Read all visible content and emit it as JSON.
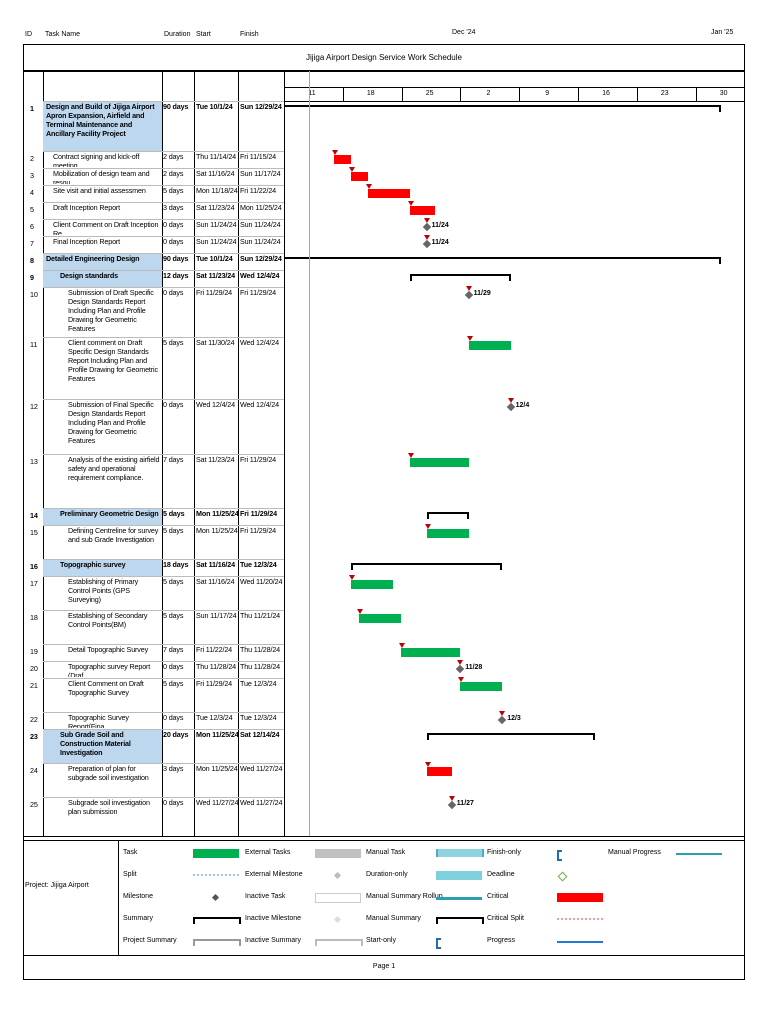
{
  "title": "Jijiga Airport Design Service Work Schedule",
  "headers": {
    "id": "ID",
    "name": "Task Name",
    "duration": "Duration",
    "start": "Start",
    "finish": "Finish"
  },
  "timescale": {
    "months": [
      "Dec '24",
      "Jan '25"
    ],
    "days": [
      "11",
      "18",
      "25",
      "2",
      "9",
      "16",
      "23",
      "30"
    ]
  },
  "tasks": [
    {
      "id": "1",
      "name": "Design and Build of Jijiga Airport Apron Expansion, Airfield and Terminal Maintenance and Ancillary Facility Project",
      "duration": "90 days",
      "start": "Tue 10/1/24",
      "finish": "Sun 12/29/24",
      "summary": true
    },
    {
      "id": "2",
      "name": "Contract signing and kick-off meeting",
      "duration": "2 days",
      "start": "Thu 11/14/24",
      "finish": "Fri 11/15/24"
    },
    {
      "id": "3",
      "name": "Mobilization of design team and resou",
      "duration": "2 days",
      "start": "Sat 11/16/24",
      "finish": "Sun 11/17/24"
    },
    {
      "id": "4",
      "name": "Site visit and initial assessmen",
      "duration": "5 days",
      "start": "Mon 11/18/24",
      "finish": "Fri 11/22/24"
    },
    {
      "id": "5",
      "name": "Draft Inception Report",
      "duration": "3 days",
      "start": "Sat 11/23/24",
      "finish": "Mon 11/25/24"
    },
    {
      "id": "6",
      "name": "Client Comment on Draft Inception Re",
      "duration": "0 days",
      "start": "Sun 11/24/24",
      "finish": "Sun 11/24/24",
      "milestone": "11/24"
    },
    {
      "id": "7",
      "name": "Final Inception Report",
      "duration": "0 days",
      "start": "Sun 11/24/24",
      "finish": "Sun 11/24/24",
      "milestone": "11/24"
    },
    {
      "id": "8",
      "name": "Detailed Engineering Design",
      "duration": "90 days",
      "start": "Tue 10/1/24",
      "finish": "Sun 12/29/24",
      "summary": true
    },
    {
      "id": "9",
      "name": "Design standards",
      "duration": "12 days",
      "start": "Sat 11/23/24",
      "finish": "Wed 12/4/24",
      "summary": true
    },
    {
      "id": "10",
      "name": "Submission of Draft Specific Design Standards Report Including Plan and Profile Drawing for Geometric Features",
      "duration": "0 days",
      "start": "Fri 11/29/24",
      "finish": "Fri 11/29/24",
      "milestone": "11/29"
    },
    {
      "id": "11",
      "name": "Client comment on Draft Specific Design Standards Report Including Plan and Profile Drawing for Geometric Features",
      "duration": "5 days",
      "start": "Sat 11/30/24",
      "finish": "Wed 12/4/24"
    },
    {
      "id": "12",
      "name": "Submission of Final Specific Design Standards Report Including Plan and Profile Drawing for Geometric Features",
      "duration": "0 days",
      "start": "Wed 12/4/24",
      "finish": "Wed 12/4/24",
      "milestone": "12/4"
    },
    {
      "id": "13",
      "name": "Analysis of the existing airfield safety and operational requirement compliance.",
      "duration": "7 days",
      "start": "Sat 11/23/24",
      "finish": "Fri 11/29/24"
    },
    {
      "id": "14",
      "name": "Preliminary Geometric Design",
      "duration": "5 days",
      "start": "Mon 11/25/24",
      "finish": "Fri 11/29/24",
      "summary": true
    },
    {
      "id": "15",
      "name": "Defining Centreline for survey and sub Grade Investigation",
      "duration": "5 days",
      "start": "Mon 11/25/24",
      "finish": "Fri 11/29/24"
    },
    {
      "id": "16",
      "name": "Topographic survey",
      "duration": "18 days",
      "start": "Sat 11/16/24",
      "finish": "Tue 12/3/24",
      "summary": true
    },
    {
      "id": "17",
      "name": "Establishing of Primary Control Points (GPS Surveying)",
      "duration": "5 days",
      "start": "Sat 11/16/24",
      "finish": "Wed 11/20/24"
    },
    {
      "id": "18",
      "name": "Establishing of Secondary Control Points(BM)",
      "duration": "5 days",
      "start": "Sun 11/17/24",
      "finish": "Thu 11/21/24"
    },
    {
      "id": "19",
      "name": "Detail Topographic Survey",
      "duration": "7 days",
      "start": "Fri 11/22/24",
      "finish": "Thu 11/28/24"
    },
    {
      "id": "20",
      "name": "Topographic survey Report (Draf",
      "duration": "0 days",
      "start": "Thu 11/28/24",
      "finish": "Thu 11/28/24",
      "milestone": "11/28"
    },
    {
      "id": "21",
      "name": "Client Comment on Draft Topographic Survey",
      "duration": "5 days",
      "start": "Fri 11/29/24",
      "finish": "Tue 12/3/24"
    },
    {
      "id": "22",
      "name": "Topographic Survey Report(Fina",
      "duration": "0 days",
      "start": "Tue 12/3/24",
      "finish": "Tue 12/3/24",
      "milestone": "12/3"
    },
    {
      "id": "23",
      "name": "Sub Grade Soil and Construction Material Investigation",
      "duration": "20 days",
      "start": "Mon 11/25/24",
      "finish": "Sat 12/14/24",
      "summary": true
    },
    {
      "id": "24",
      "name": "Preparation of plan for subgrade soil investigation",
      "duration": "3 days",
      "start": "Mon 11/25/24",
      "finish": "Wed 11/27/24"
    },
    {
      "id": "25",
      "name": "Subgrade soil investigation plan submission",
      "duration": "0 days",
      "start": "Wed 11/27/24",
      "finish": "Wed 11/27/24",
      "milestone": "11/27"
    }
  ],
  "legend": {
    "project": "Project: Jijiga Airport",
    "col1": [
      "Task",
      "Split",
      "Milestone",
      "Summary",
      "Project Summary"
    ],
    "col2": [
      "External Tasks",
      "External Milestone",
      "Inactive Task",
      "Inactive Milestone",
      "Inactive Summary"
    ],
    "col3": [
      "Manual Task",
      "Duration-only",
      "Manual Summary Rollup",
      "Manual Summary",
      "Start-only"
    ],
    "col4": [
      "Finish-only",
      "Deadline",
      "Critical",
      "Critical Split",
      "Progress"
    ],
    "col5": [
      "Manual Progress"
    ]
  },
  "footer": "Page 1",
  "colors": {
    "task": "#00b050",
    "critical": "#ff0000",
    "summary_bg": "#bdd7ee",
    "manual": "#4bacc6"
  }
}
